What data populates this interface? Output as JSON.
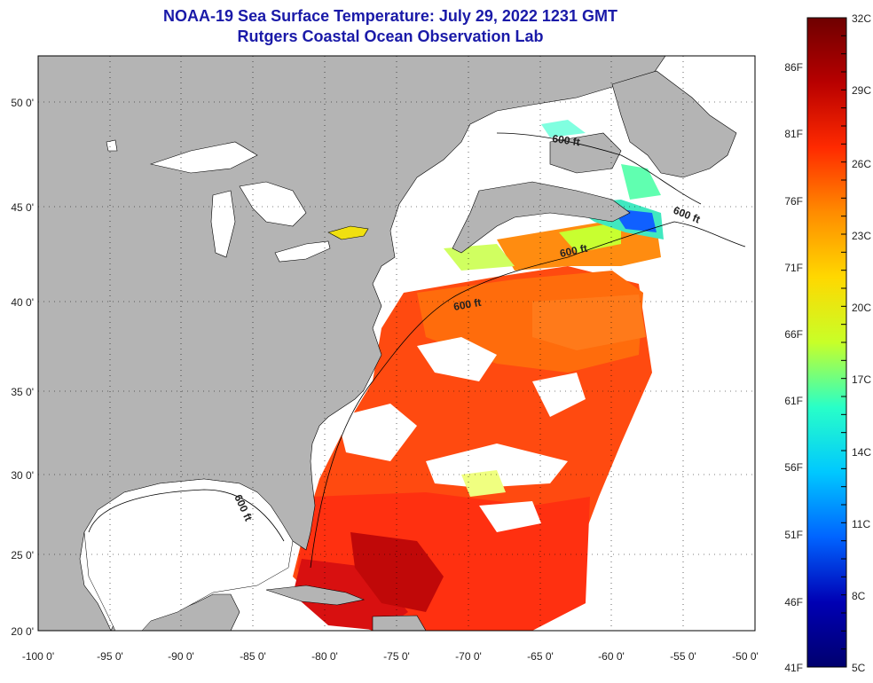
{
  "header": {
    "title": "NOAA-19 Sea Surface Temperature:  July 29, 2022 1231 GMT",
    "subtitle": "Rutgers Coastal Ocean Observation Lab"
  },
  "map": {
    "lon_labels": [
      "-100 0'",
      "-95 0'",
      "-90 0'",
      "-85 0'",
      "-80 0'",
      "-75 0'",
      "-70 0'",
      "-65 0'",
      "-60 0'",
      "-55 0'",
      "-50 0'"
    ],
    "lat_labels": [
      "50 0'",
      "45 0'",
      "40 0'",
      "35 0'",
      "30 0'",
      "25 0'",
      "20 0'"
    ],
    "contour_labels": [
      "600 ft",
      "600 ft",
      "600 ft",
      "600 ft",
      "600 ft"
    ]
  },
  "colorbar": {
    "celsius": [
      "32C",
      "29C",
      "26C",
      "23C",
      "20C",
      "17C",
      "14C",
      "11C",
      "8C",
      "5C"
    ],
    "fahrenheit": [
      "86F",
      "81F",
      "76F",
      "71F",
      "66F",
      "61F",
      "56F",
      "51F",
      "46F",
      "41F"
    ],
    "colors": [
      "#6e0000",
      "#b80000",
      "#ff2a00",
      "#ff8c00",
      "#ffd800",
      "#c8ff28",
      "#28ffc8",
      "#00c8ff",
      "#0064ff",
      "#0000b4",
      "#00006e"
    ]
  }
}
